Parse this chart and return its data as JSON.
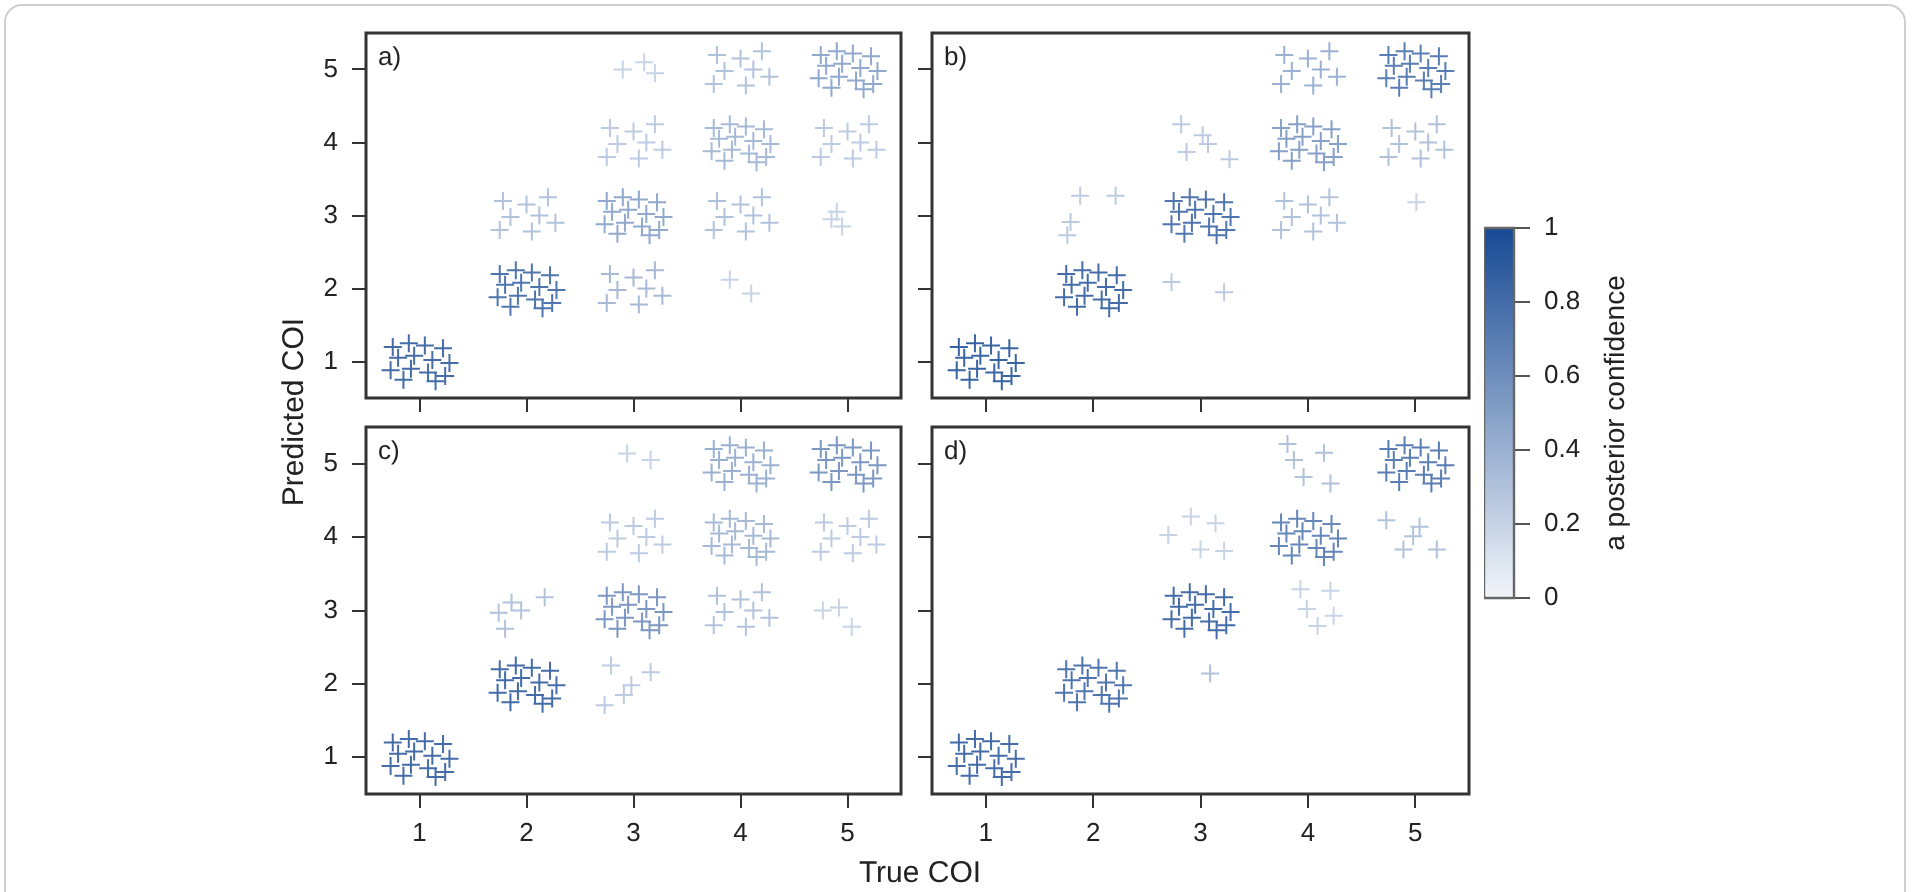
{
  "chart_data": [
    {
      "type": "scatter",
      "title": "a)",
      "ylabel": "Predicted COI",
      "marker": "cross",
      "tick_labels": "y",
      "xlim": [
        0.5,
        5.5
      ],
      "ylim": [
        0.5,
        5.5
      ],
      "xticks": [
        1,
        2,
        3,
        4,
        5
      ],
      "yticks": [
        1,
        2,
        3,
        4,
        5
      ],
      "x": [
        0.75,
        0.9,
        1.05,
        1.22,
        0.8,
        0.95,
        1.12,
        1.28,
        0.73,
        0.92,
        1.08,
        1.24,
        0.85,
        1.15,
        1.75,
        1.9,
        2.05,
        2.22,
        1.8,
        1.95,
        2.12,
        2.28,
        1.73,
        1.92,
        2.08,
        2.24,
        1.85,
        2.15,
        1.78,
        2,
        2.2,
        1.85,
        2.12,
        2.27,
        1.75,
        2.05,
        2.78,
        3,
        3.2,
        2.85,
        3.12,
        3.27,
        2.75,
        3.05,
        2.75,
        2.9,
        3.05,
        3.22,
        2.8,
        2.95,
        3.12,
        3.28,
        2.73,
        2.92,
        3.08,
        3.24,
        2.85,
        3.15,
        2.78,
        3,
        3.2,
        2.85,
        3.12,
        3.27,
        2.75,
        3.05,
        2.9,
        3.1,
        3.2,
        3.9,
        4.1,
        3.78,
        4,
        4.2,
        3.85,
        4.12,
        4.27,
        3.75,
        4.05,
        3.75,
        3.9,
        4.05,
        4.22,
        3.8,
        3.95,
        4.12,
        4.28,
        3.73,
        3.92,
        4.08,
        4.24,
        3.85,
        4.15,
        3.78,
        4,
        4.2,
        3.85,
        4.12,
        4.27,
        3.75,
        4.05,
        4.85,
        4.95,
        4.9,
        4.78,
        5,
        5.2,
        4.85,
        5.12,
        5.27,
        4.75,
        5.05,
        4.75,
        4.9,
        5.05,
        5.22,
        4.8,
        4.95,
        5.12,
        5.28,
        4.73,
        4.92,
        5.08,
        5.24,
        4.85,
        5.15
      ],
      "values": [
        1.2,
        1.25,
        1.22,
        1.18,
        1.05,
        1.08,
        1.02,
        0.98,
        0.88,
        0.9,
        0.85,
        0.8,
        0.75,
        0.73,
        2.2,
        2.25,
        2.22,
        2.18,
        2.05,
        2.08,
        2.02,
        1.98,
        1.88,
        1.9,
        1.85,
        1.8,
        1.75,
        1.73,
        3.2,
        3.15,
        3.25,
        2.98,
        3,
        2.9,
        2.8,
        2.78,
        2.2,
        2.15,
        2.25,
        1.98,
        2,
        1.9,
        1.8,
        1.78,
        3.2,
        3.25,
        3.22,
        3.18,
        3.05,
        3.08,
        3.02,
        2.98,
        2.88,
        2.9,
        2.85,
        2.8,
        2.75,
        2.73,
        4.2,
        4.15,
        4.25,
        3.98,
        4,
        3.9,
        3.8,
        3.78,
        5,
        5.1,
        4.95,
        2.12,
        1.93,
        3.2,
        3.15,
        3.25,
        2.98,
        3,
        2.9,
        2.8,
        2.78,
        4.2,
        4.25,
        4.22,
        4.18,
        4.05,
        4.08,
        4.02,
        3.98,
        3.88,
        3.9,
        3.85,
        3.8,
        3.75,
        3.73,
        5.2,
        5.15,
        5.25,
        4.98,
        5,
        4.9,
        4.8,
        4.78,
        2.95,
        2.85,
        3.05,
        4.2,
        4.15,
        4.25,
        3.98,
        4,
        3.9,
        3.8,
        3.78,
        5.2,
        5.25,
        5.22,
        5.18,
        5.05,
        5.08,
        5.02,
        4.98,
        4.88,
        4.9,
        4.85,
        4.8,
        4.75,
        4.73
      ],
      "colors": [
        "#446ca8",
        "#446ca8",
        "#446ca8",
        "#446ca8",
        "#446ca8",
        "#446ca8",
        "#446ca8",
        "#446ca8",
        "#446ca8",
        "#446ca8",
        "#446ca8",
        "#446ca8",
        "#446ca8",
        "#446ca8",
        "#4f75ae",
        "#4f75ae",
        "#4f75ae",
        "#4f75ae",
        "#4f75ae",
        "#4f75ae",
        "#4f75ae",
        "#4f75ae",
        "#4f75ae",
        "#4f75ae",
        "#4f75ae",
        "#4f75ae",
        "#4f75ae",
        "#4f75ae",
        "#b1c2db",
        "#b1c2db",
        "#b1c2db",
        "#b1c2db",
        "#b1c2db",
        "#b1c2db",
        "#b1c2db",
        "#b1c2db",
        "#a6bad6",
        "#a6bad6",
        "#a6bad6",
        "#a6bad6",
        "#a6bad6",
        "#a6bad6",
        "#a6bad6",
        "#a6bad6",
        "#90a9cc",
        "#90a9cc",
        "#90a9cc",
        "#90a9cc",
        "#90a9cc",
        "#90a9cc",
        "#90a9cc",
        "#90a9cc",
        "#90a9cc",
        "#90a9cc",
        "#90a9cc",
        "#90a9cc",
        "#90a9cc",
        "#90a9cc",
        "#bccbe1",
        "#bccbe1",
        "#bccbe1",
        "#bccbe1",
        "#bccbe1",
        "#bccbe1",
        "#bccbe1",
        "#bccbe1",
        "#c7d4e6",
        "#c7d4e6",
        "#c7d4e6",
        "#c7d4e6",
        "#c7d4e6",
        "#b1c2db",
        "#b1c2db",
        "#b1c2db",
        "#b1c2db",
        "#b1c2db",
        "#b1c2db",
        "#b1c2db",
        "#b1c2db",
        "#a6bad6",
        "#a6bad6",
        "#a6bad6",
        "#a6bad6",
        "#a6bad6",
        "#a6bad6",
        "#a6bad6",
        "#a6bad6",
        "#a6bad6",
        "#a6bad6",
        "#a6bad6",
        "#a6bad6",
        "#a6bad6",
        "#a6bad6",
        "#b1c2db",
        "#b1c2db",
        "#b1c2db",
        "#b1c2db",
        "#b1c2db",
        "#b1c2db",
        "#b1c2db",
        "#b1c2db",
        "#c7d4e6",
        "#c7d4e6",
        "#c7d4e6",
        "#bccbe1",
        "#bccbe1",
        "#bccbe1",
        "#bccbe1",
        "#bccbe1",
        "#bccbe1",
        "#bccbe1",
        "#bccbe1",
        "#90a9cc",
        "#90a9cc",
        "#90a9cc",
        "#90a9cc",
        "#90a9cc",
        "#90a9cc",
        "#90a9cc",
        "#90a9cc",
        "#90a9cc",
        "#90a9cc",
        "#90a9cc",
        "#90a9cc",
        "#90a9cc",
        "#90a9cc"
      ]
    },
    {
      "type": "scatter",
      "title": "b)",
      "marker": "cross",
      "tick_labels": false,
      "xlim": [
        0.5,
        5.5
      ],
      "ylim": [
        0.5,
        5.5
      ],
      "xticks": [
        1,
        2,
        3,
        4,
        5
      ],
      "yticks": [
        1,
        2,
        3,
        4,
        5
      ],
      "clim": [
        0,
        1
      ],
      "cticks": [
        0,
        0.2,
        0.4,
        0.6,
        0.8,
        1
      ],
      "clabel": "a posterior confidence",
      "x": [
        0.75,
        0.9,
        1.05,
        1.22,
        0.8,
        0.95,
        1.12,
        1.28,
        0.73,
        0.92,
        1.08,
        1.24,
        0.85,
        1.15,
        1.75,
        1.9,
        2.05,
        2.22,
        1.8,
        1.95,
        2.12,
        2.28,
        1.73,
        1.92,
        2.08,
        2.24,
        1.85,
        2.15,
        1.88,
        2.21,
        1.79,
        1.76,
        2.73,
        3.22,
        2.75,
        2.9,
        3.05,
        3.22,
        2.8,
        2.95,
        3.12,
        3.28,
        2.73,
        2.92,
        3.08,
        3.24,
        2.85,
        3.15,
        2.82,
        3.02,
        2.87,
        3.27,
        3.07,
        3.78,
        4,
        4.2,
        3.85,
        4.12,
        4.27,
        3.75,
        4.05,
        3.75,
        3.9,
        4.05,
        4.22,
        3.8,
        3.95,
        4.12,
        4.28,
        3.73,
        3.92,
        4.08,
        4.24,
        3.85,
        4.15,
        3.78,
        4,
        4.2,
        3.85,
        4.12,
        4.27,
        3.75,
        4.05,
        5.01,
        4.78,
        5,
        5.2,
        4.85,
        5.12,
        5.27,
        4.75,
        5.05,
        4.75,
        4.9,
        5.05,
        5.22,
        4.8,
        4.95,
        5.12,
        5.28,
        4.73,
        4.92,
        5.08,
        5.24,
        4.85,
        5.15
      ],
      "values": [
        1.2,
        1.25,
        1.22,
        1.18,
        1.05,
        1.08,
        1.02,
        0.98,
        0.88,
        0.9,
        0.85,
        0.8,
        0.75,
        0.73,
        2.2,
        2.25,
        2.22,
        2.18,
        2.05,
        2.08,
        2.02,
        1.98,
        1.88,
        1.9,
        1.85,
        1.8,
        1.75,
        1.73,
        3.27,
        3.27,
        2.91,
        2.73,
        2.09,
        1.95,
        3.2,
        3.25,
        3.22,
        3.18,
        3.05,
        3.08,
        3.02,
        2.98,
        2.88,
        2.9,
        2.85,
        2.8,
        2.75,
        2.73,
        4.25,
        4.1,
        3.87,
        3.77,
        3.98,
        3.2,
        3.15,
        3.25,
        2.98,
        3,
        2.9,
        2.8,
        2.78,
        4.2,
        4.25,
        4.22,
        4.18,
        4.05,
        4.08,
        4.02,
        3.98,
        3.88,
        3.9,
        3.85,
        3.8,
        3.75,
        3.73,
        5.2,
        5.15,
        5.25,
        4.98,
        5,
        4.9,
        4.8,
        4.78,
        3.18,
        4.2,
        4.15,
        4.25,
        3.98,
        4,
        3.9,
        3.8,
        3.78,
        5.2,
        5.25,
        5.22,
        5.18,
        5.05,
        5.08,
        5.02,
        4.98,
        4.88,
        4.9,
        4.85,
        4.8,
        4.75,
        4.73
      ],
      "cvalues": [
        0.85,
        0.85,
        0.85,
        0.85,
        0.85,
        0.85,
        0.85,
        0.85,
        0.85,
        0.85,
        0.85,
        0.85,
        0.85,
        0.85,
        0.8,
        0.8,
        0.8,
        0.8,
        0.8,
        0.8,
        0.8,
        0.8,
        0.8,
        0.8,
        0.8,
        0.8,
        0.8,
        0.8,
        0.25,
        0.25,
        0.25,
        0.25,
        0.25,
        0.25,
        0.75,
        0.75,
        0.75,
        0.75,
        0.75,
        0.75,
        0.75,
        0.75,
        0.75,
        0.75,
        0.75,
        0.75,
        0.75,
        0.75,
        0.25,
        0.25,
        0.25,
        0.25,
        0.25,
        0.3,
        0.3,
        0.3,
        0.3,
        0.3,
        0.3,
        0.3,
        0.3,
        0.5,
        0.5,
        0.5,
        0.5,
        0.5,
        0.5,
        0.5,
        0.5,
        0.5,
        0.5,
        0.5,
        0.5,
        0.5,
        0.5,
        0.4,
        0.4,
        0.4,
        0.4,
        0.4,
        0.4,
        0.4,
        0.4,
        0.2,
        0.3,
        0.3,
        0.3,
        0.3,
        0.3,
        0.3,
        0.3,
        0.3,
        0.7,
        0.7,
        0.7,
        0.7,
        0.7,
        0.7,
        0.7,
        0.7,
        0.7,
        0.7,
        0.7,
        0.7,
        0.7,
        0.7
      ]
    },
    {
      "type": "scatter",
      "title": "c)",
      "xlabel": "True COI",
      "marker": "cross",
      "xlim": [
        0.5,
        5.5
      ],
      "ylim": [
        0.5,
        5.5
      ],
      "xticks": [
        1,
        2,
        3,
        4,
        5
      ],
      "yticks": [
        1,
        2,
        3,
        4,
        5
      ],
      "x": [
        0.75,
        0.9,
        1.05,
        1.22,
        0.8,
        0.95,
        1.12,
        1.28,
        0.73,
        0.92,
        1.08,
        1.24,
        0.85,
        1.15,
        1.75,
        1.9,
        2.05,
        2.22,
        1.8,
        1.95,
        2.12,
        2.28,
        1.73,
        1.92,
        2.08,
        2.24,
        1.85,
        2.15,
        1.74,
        1.86,
        2.17,
        1.8,
        1.95,
        2.79,
        2.98,
        3.16,
        2.73,
        2.91,
        2.75,
        2.9,
        3.05,
        3.22,
        2.8,
        2.95,
        3.12,
        3.28,
        2.73,
        2.92,
        3.08,
        3.24,
        2.85,
        3.15,
        2.78,
        3,
        3.2,
        2.85,
        3.12,
        3.27,
        2.75,
        3.05,
        2.94,
        3.16,
        3.78,
        4,
        4.2,
        3.85,
        4.12,
        4.27,
        3.75,
        4.05,
        3.75,
        3.9,
        4.05,
        4.22,
        3.8,
        3.95,
        4.12,
        4.28,
        3.73,
        3.92,
        4.08,
        4.24,
        3.85,
        4.15,
        3.75,
        3.9,
        4.05,
        4.22,
        3.8,
        3.95,
        4.12,
        4.28,
        3.73,
        3.92,
        4.08,
        4.24,
        3.85,
        4.15,
        4.77,
        4.92,
        5.04,
        4.78,
        5,
        5.2,
        4.85,
        5.12,
        5.27,
        4.75,
        5.05,
        4.75,
        4.9,
        5.05,
        5.22,
        4.8,
        4.95,
        5.12,
        5.28,
        4.73,
        4.92,
        5.08,
        5.24,
        4.85,
        5.15
      ],
      "values": [
        1.2,
        1.25,
        1.22,
        1.18,
        1.05,
        1.08,
        1.02,
        0.98,
        0.88,
        0.9,
        0.85,
        0.8,
        0.75,
        0.73,
        2.2,
        2.25,
        2.22,
        2.18,
        2.05,
        2.08,
        2.02,
        1.98,
        1.88,
        1.9,
        1.85,
        1.8,
        1.75,
        1.73,
        2.97,
        3.11,
        3.18,
        2.75,
        3,
        2.25,
        1.98,
        2.16,
        1.71,
        1.85,
        3.2,
        3.25,
        3.22,
        3.18,
        3.05,
        3.08,
        3.02,
        2.98,
        2.88,
        2.9,
        2.85,
        2.8,
        2.75,
        2.73,
        4.2,
        4.15,
        4.25,
        3.98,
        4,
        3.9,
        3.8,
        3.78,
        5.14,
        5.05,
        3.2,
        3.15,
        3.25,
        2.98,
        3,
        2.9,
        2.8,
        2.78,
        4.2,
        4.25,
        4.22,
        4.18,
        4.05,
        4.08,
        4.02,
        3.98,
        3.88,
        3.9,
        3.85,
        3.8,
        3.75,
        3.73,
        5.2,
        5.25,
        5.22,
        5.18,
        5.05,
        5.08,
        5.02,
        4.98,
        4.88,
        4.9,
        4.85,
        4.8,
        4.75,
        4.73,
        3,
        3.04,
        2.78,
        4.2,
        4.15,
        4.25,
        3.98,
        4,
        3.9,
        3.8,
        3.78,
        5.2,
        5.25,
        5.22,
        5.18,
        5.05,
        5.08,
        5.02,
        4.98,
        4.88,
        4.9,
        4.85,
        4.8,
        4.75,
        4.73
      ],
      "colors": [
        "#446ca8",
        "#446ca8",
        "#446ca8",
        "#446ca8",
        "#446ca8",
        "#446ca8",
        "#446ca8",
        "#446ca8",
        "#446ca8",
        "#446ca8",
        "#446ca8",
        "#446ca8",
        "#446ca8",
        "#446ca8",
        "#446ca8",
        "#446ca8",
        "#446ca8",
        "#446ca8",
        "#446ca8",
        "#446ca8",
        "#446ca8",
        "#446ca8",
        "#446ca8",
        "#446ca8",
        "#446ca8",
        "#446ca8",
        "#446ca8",
        "#446ca8",
        "#b1c2db",
        "#b1c2db",
        "#b1c2db",
        "#b1c2db",
        "#b1c2db",
        "#bccbe1",
        "#bccbe1",
        "#bccbe1",
        "#bccbe1",
        "#bccbe1",
        "#7b97c2",
        "#7b97c2",
        "#7b97c2",
        "#7b97c2",
        "#7b97c2",
        "#7b97c2",
        "#7b97c2",
        "#7b97c2",
        "#7b97c2",
        "#7b97c2",
        "#7b97c2",
        "#7b97c2",
        "#7b97c2",
        "#7b97c2",
        "#bccbe1",
        "#bccbe1",
        "#bccbe1",
        "#bccbe1",
        "#bccbe1",
        "#bccbe1",
        "#bccbe1",
        "#bccbe1",
        "#c7d4e6",
        "#c7d4e6",
        "#b1c2db",
        "#b1c2db",
        "#b1c2db",
        "#b1c2db",
        "#b1c2db",
        "#b1c2db",
        "#b1c2db",
        "#b1c2db",
        "#a6bad6",
        "#a6bad6",
        "#a6bad6",
        "#a6bad6",
        "#a6bad6",
        "#a6bad6",
        "#a6bad6",
        "#a6bad6",
        "#a6bad6",
        "#a6bad6",
        "#a6bad6",
        "#a6bad6",
        "#a6bad6",
        "#a6bad6",
        "#9bb1d1",
        "#9bb1d1",
        "#9bb1d1",
        "#9bb1d1",
        "#9bb1d1",
        "#9bb1d1",
        "#9bb1d1",
        "#9bb1d1",
        "#9bb1d1",
        "#9bb1d1",
        "#9bb1d1",
        "#9bb1d1",
        "#9bb1d1",
        "#9bb1d1",
        "#c7d4e6",
        "#c7d4e6",
        "#c7d4e6",
        "#bccbe1",
        "#bccbe1",
        "#bccbe1",
        "#bccbe1",
        "#bccbe1",
        "#bccbe1",
        "#bccbe1",
        "#bccbe1",
        "#7b97c2",
        "#7b97c2",
        "#7b97c2",
        "#7b97c2",
        "#7b97c2",
        "#7b97c2",
        "#7b97c2",
        "#7b97c2",
        "#7b97c2",
        "#7b97c2",
        "#7b97c2",
        "#7b97c2",
        "#7b97c2",
        "#7b97c2"
      ]
    },
    {
      "type": "scatter",
      "title": "d)",
      "marker": "cross",
      "tick_labels": "x",
      "xlim": [
        0.5,
        5.5
      ],
      "ylim": [
        0.5,
        5.5
      ],
      "xticks": [
        1,
        2,
        3,
        4,
        5
      ],
      "yticks": [
        1,
        2,
        3,
        4,
        5
      ],
      "x": [
        0.75,
        0.9,
        1.05,
        1.22,
        0.8,
        0.95,
        1.12,
        1.28,
        0.73,
        0.92,
        1.08,
        1.24,
        0.85,
        1.15,
        1.75,
        1.9,
        2.05,
        2.22,
        1.8,
        1.95,
        2.12,
        2.28,
        1.73,
        1.92,
        2.08,
        2.24,
        1.85,
        2.15,
        3.09,
        2.75,
        2.9,
        3.05,
        3.22,
        2.8,
        2.95,
        3.12,
        3.28,
        2.73,
        2.92,
        3.08,
        3.24,
        2.85,
        3.15,
        2.7,
        2.91,
        3.14,
        3,
        3.22,
        3.93,
        4.21,
        3.99,
        4.09,
        4.24,
        3.75,
        3.9,
        4.05,
        4.22,
        3.8,
        3.95,
        4.12,
        4.28,
        3.73,
        3.92,
        4.08,
        4.24,
        3.85,
        4.15,
        3.81,
        4.15,
        3.96,
        4.21,
        3.87,
        4.73,
        5.04,
        4.89,
        5.2,
        4.98,
        4.75,
        4.9,
        5.05,
        5.22,
        4.8,
        4.95,
        5.12,
        5.28,
        4.73,
        4.92,
        5.08,
        5.24,
        4.85,
        5.15
      ],
      "values": [
        1.2,
        1.25,
        1.22,
        1.18,
        1.05,
        1.08,
        1.02,
        0.98,
        0.88,
        0.9,
        0.85,
        0.8,
        0.75,
        0.73,
        2.2,
        2.25,
        2.22,
        2.18,
        2.05,
        2.08,
        2.02,
        1.98,
        1.88,
        1.9,
        1.85,
        1.8,
        1.75,
        1.73,
        2.14,
        3.2,
        3.25,
        3.22,
        3.18,
        3.05,
        3.08,
        3.02,
        2.98,
        2.88,
        2.9,
        2.85,
        2.8,
        2.75,
        2.73,
        4.03,
        4.28,
        4.19,
        3.83,
        3.81,
        3.29,
        3.27,
        3.02,
        2.79,
        2.93,
        4.2,
        4.25,
        4.22,
        4.18,
        4.05,
        4.08,
        4.02,
        3.98,
        3.88,
        3.9,
        3.85,
        3.8,
        3.75,
        3.73,
        5.27,
        5.15,
        4.82,
        4.73,
        5.05,
        4.23,
        4.14,
        3.83,
        3.83,
        4.01,
        5.2,
        5.25,
        5.22,
        5.18,
        5.05,
        5.08,
        5.02,
        4.98,
        4.88,
        4.9,
        4.85,
        4.8,
        4.75,
        4.73
      ],
      "colors": [
        "#446ca8",
        "#446ca8",
        "#446ca8",
        "#446ca8",
        "#446ca8",
        "#446ca8",
        "#446ca8",
        "#446ca8",
        "#446ca8",
        "#446ca8",
        "#446ca8",
        "#446ca8",
        "#446ca8",
        "#446ca8",
        "#4f75ae",
        "#4f75ae",
        "#4f75ae",
        "#4f75ae",
        "#4f75ae",
        "#4f75ae",
        "#4f75ae",
        "#4f75ae",
        "#4f75ae",
        "#4f75ae",
        "#4f75ae",
        "#4f75ae",
        "#4f75ae",
        "#4f75ae",
        "#b1c2db",
        "#446ca8",
        "#446ca8",
        "#446ca8",
        "#446ca8",
        "#446ca8",
        "#446ca8",
        "#446ca8",
        "#446ca8",
        "#446ca8",
        "#446ca8",
        "#446ca8",
        "#446ca8",
        "#446ca8",
        "#446ca8",
        "#c7d4e6",
        "#c7d4e6",
        "#c7d4e6",
        "#c7d4e6",
        "#c7d4e6",
        "#c7d4e6",
        "#c7d4e6",
        "#c7d4e6",
        "#c7d4e6",
        "#c7d4e6",
        "#6586b8",
        "#6586b8",
        "#6586b8",
        "#6586b8",
        "#6586b8",
        "#6586b8",
        "#6586b8",
        "#6586b8",
        "#6586b8",
        "#6586b8",
        "#6586b8",
        "#6586b8",
        "#6586b8",
        "#6586b8",
        "#b1c2db",
        "#b1c2db",
        "#b1c2db",
        "#b1c2db",
        "#b1c2db",
        "#b1c2db",
        "#b1c2db",
        "#b1c2db",
        "#b1c2db",
        "#b1c2db",
        "#5a7eb3",
        "#5a7eb3",
        "#5a7eb3",
        "#5a7eb3",
        "#5a7eb3",
        "#5a7eb3",
        "#5a7eb3",
        "#5a7eb3",
        "#5a7eb3",
        "#5a7eb3",
        "#5a7eb3",
        "#5a7eb3",
        "#5a7eb3",
        "#5a7eb3"
      ]
    }
  ]
}
